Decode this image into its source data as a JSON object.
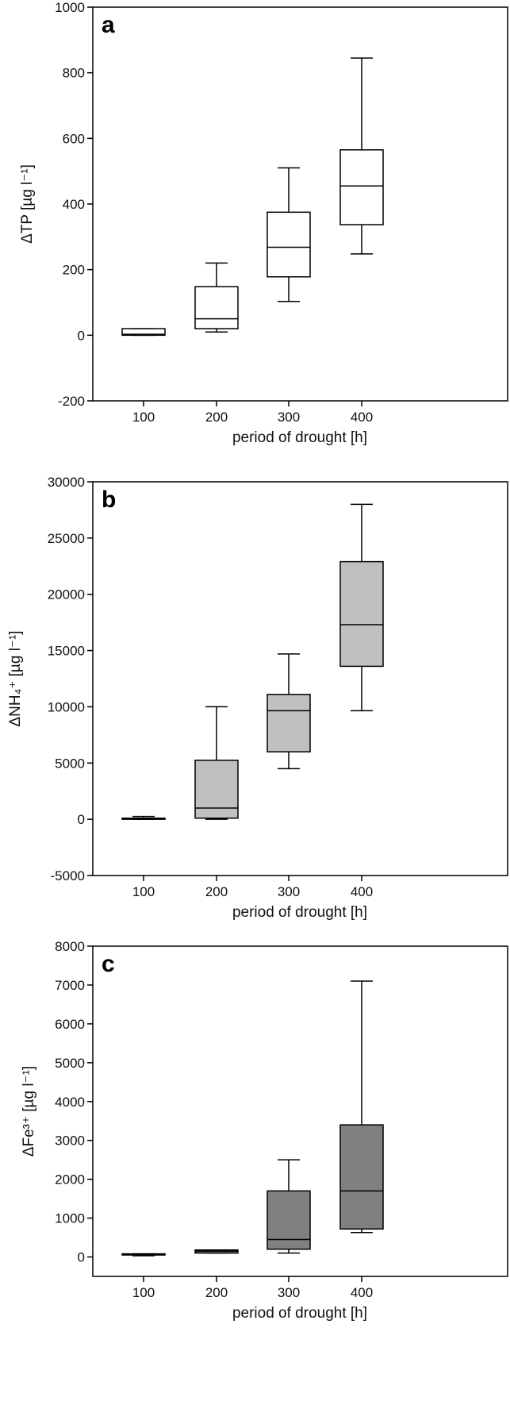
{
  "chart_data": [
    {
      "type": "box",
      "panel_label": "a",
      "xlabel": "period of drought [h]",
      "ylabel": "ΔTP [µg l⁻¹]",
      "categories": [
        "100",
        "200",
        "300",
        "400"
      ],
      "ylim": [
        -200,
        1000
      ],
      "yticks": [
        -200,
        0,
        200,
        400,
        600,
        800,
        1000
      ],
      "fill": "#ffffff",
      "boxes": [
        {
          "min": 0,
          "q1": 0,
          "median": 3,
          "q3": 20,
          "max": 20
        },
        {
          "min": 10,
          "q1": 20,
          "median": 50,
          "q3": 148,
          "max": 220
        },
        {
          "min": 103,
          "q1": 178,
          "median": 268,
          "q3": 375,
          "max": 510
        },
        {
          "min": 248,
          "q1": 337,
          "median": 455,
          "q3": 565,
          "max": 845
        }
      ]
    },
    {
      "type": "box",
      "panel_label": "b",
      "xlabel": "period of drought [h]",
      "ylabel": "ΔNH₄⁺ [µg l⁻¹]",
      "categories": [
        "100",
        "200",
        "300",
        "400"
      ],
      "ylim": [
        -5000,
        30000
      ],
      "yticks": [
        -5000,
        0,
        5000,
        10000,
        15000,
        20000,
        25000,
        30000
      ],
      "fill": "#c0c0c0",
      "boxes": [
        {
          "min": 0,
          "q1": 0,
          "median": 50,
          "q3": 100,
          "max": 250
        },
        {
          "min": 0,
          "q1": 100,
          "median": 1000,
          "q3": 5250,
          "max": 10000
        },
        {
          "min": 4500,
          "q1": 6000,
          "median": 9650,
          "q3": 11100,
          "max": 14700
        },
        {
          "min": 9650,
          "q1": 13600,
          "median": 17300,
          "q3": 22900,
          "max": 28000
        }
      ]
    },
    {
      "type": "box",
      "panel_label": "c",
      "xlabel": "period of drought [h]",
      "ylabel": "ΔFe³⁺ [µg l⁻¹]",
      "categories": [
        "100",
        "200",
        "300",
        "400"
      ],
      "ylim": [
        -500,
        8000
      ],
      "yticks": [
        0,
        1000,
        2000,
        3000,
        4000,
        5000,
        6000,
        7000,
        8000
      ],
      "fill": "#808080",
      "boxes": [
        {
          "min": 30,
          "q1": 50,
          "median": 60,
          "q3": 80,
          "max": 80
        },
        {
          "min": 100,
          "q1": 100,
          "median": 150,
          "q3": 180,
          "max": 180
        },
        {
          "min": 100,
          "q1": 200,
          "median": 450,
          "q3": 1700,
          "max": 2500
        },
        {
          "min": 630,
          "q1": 720,
          "median": 1700,
          "q3": 3400,
          "max": 7100
        }
      ]
    }
  ]
}
